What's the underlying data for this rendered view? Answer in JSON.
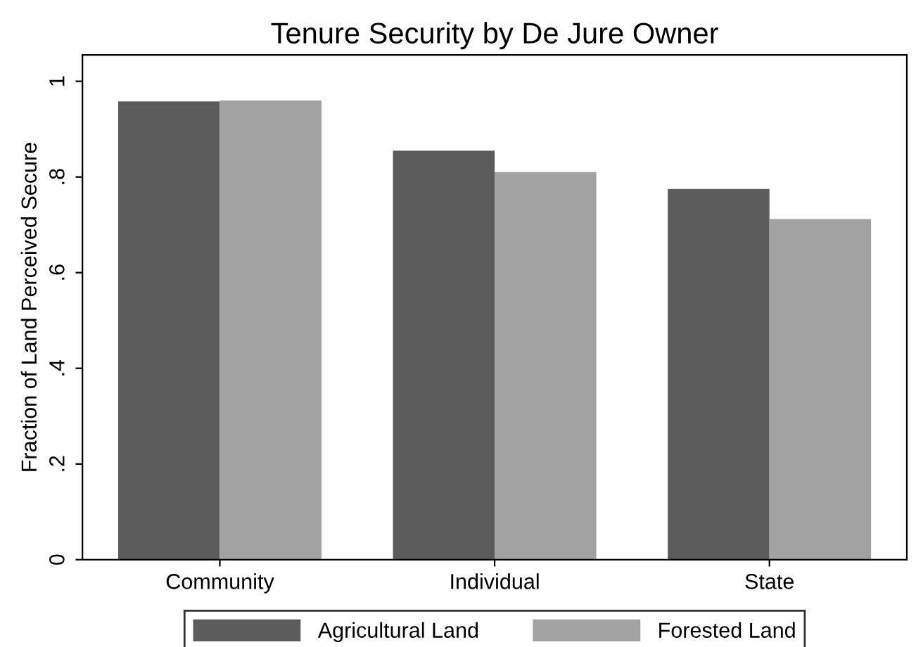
{
  "chart_data": {
    "type": "bar",
    "title": "Tenure Security by De Jure Owner",
    "ylabel": "Fraction of Land Perceived Secure",
    "categories": [
      "Community",
      "Individual",
      "State"
    ],
    "series": [
      {
        "name": "Agricultural Land",
        "color": "#5c5c5c",
        "values": [
          0.958,
          0.855,
          0.775
        ]
      },
      {
        "name": "Forested Land",
        "color": "#a2a2a2",
        "values": [
          0.96,
          0.81,
          0.712
        ]
      }
    ],
    "ylim": [
      0,
      1.055
    ],
    "yticks": [
      0,
      {
        "value": 0.2,
        "label": ".2"
      },
      {
        "value": 0.4,
        "label": ".4"
      },
      {
        "value": 0.6,
        "label": ".6"
      },
      {
        "value": 0.8,
        "label": ".8"
      },
      1
    ],
    "grid": false,
    "legend": "bottom"
  }
}
